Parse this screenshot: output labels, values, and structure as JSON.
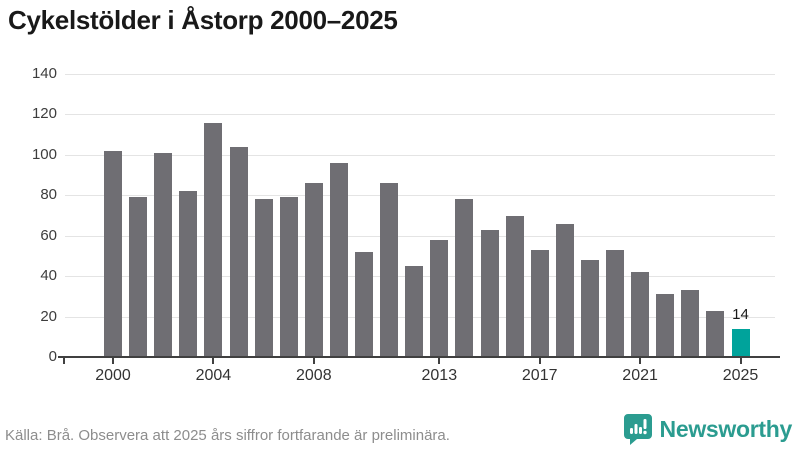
{
  "title": "Cykelstölder i Åstorp 2000–2025",
  "footer": {
    "source": "Källa: Brå. Observera att 2025 års siffror fortfarande är preliminära.",
    "brand": "Newsworthy"
  },
  "colors": {
    "bar": "#6f6e73",
    "bar_highlight": "#00a39b",
    "brand_teal": "#2b9c90",
    "gridline": "#e4e4e4",
    "axis": "#404040",
    "title_text": "#191919",
    "tick_text": "#3d3d3d",
    "source_text": "#8d8d8d"
  },
  "chart_data": {
    "type": "bar",
    "title": "Cykelstölder i Åstorp 2000–2025",
    "categories": [
      2000,
      2001,
      2002,
      2003,
      2004,
      2005,
      2006,
      2007,
      2008,
      2009,
      2010,
      2011,
      2012,
      2013,
      2014,
      2015,
      2016,
      2017,
      2018,
      2019,
      2020,
      2021,
      2022,
      2023,
      2024,
      2025
    ],
    "values": [
      102,
      79,
      101,
      82,
      116,
      104,
      78,
      79,
      86,
      96,
      52,
      86,
      45,
      58,
      78,
      63,
      70,
      53,
      66,
      48,
      53,
      42,
      31,
      33,
      23,
      14
    ],
    "highlight_index": 25,
    "highlight_label": "14",
    "xlabel": "",
    "ylabel": "",
    "ylim": [
      0,
      140
    ],
    "yticks": [
      0,
      20,
      40,
      60,
      80,
      100,
      120,
      140
    ],
    "xticks": [
      2000,
      2004,
      2008,
      2013,
      2017,
      2021,
      2025
    ],
    "grid": true,
    "legend": false
  }
}
